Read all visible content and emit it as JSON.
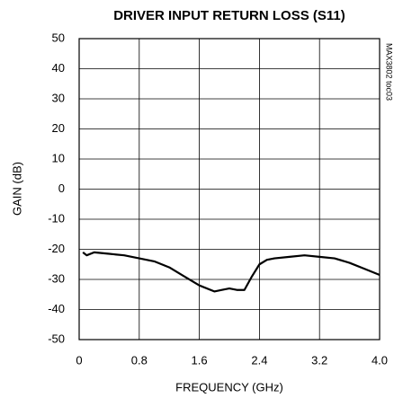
{
  "chart_data": {
    "type": "line",
    "title": "DRIVER INPUT RETURN LOSS (S11)",
    "xlabel": "FREQUENCY (GHz)",
    "ylabel": "GAIN (dB)",
    "annotation": "MAX3802 toc03",
    "xlim": [
      0,
      4
    ],
    "xticks": [
      0,
      0.8,
      1.6,
      2.4,
      3.2,
      {
        "value": 4,
        "label": "4.0"
      }
    ],
    "ylim": [
      -50,
      50
    ],
    "yticks": [
      -50,
      -40,
      -30,
      -20,
      -10,
      0,
      10,
      20,
      30,
      40,
      50
    ],
    "grid": true,
    "series": [
      {
        "name": "S11",
        "color": "#000000",
        "x": [
          0.05,
          0.1,
          0.2,
          0.4,
          0.6,
          0.8,
          1.0,
          1.2,
          1.4,
          1.6,
          1.8,
          1.9,
          2.0,
          2.1,
          2.2,
          2.3,
          2.4,
          2.5,
          2.6,
          2.8,
          3.0,
          3.2,
          3.4,
          3.6,
          3.8,
          3.9,
          4.0
        ],
        "values": [
          -21,
          -22,
          -21,
          -21.5,
          -22,
          -23,
          -24,
          -26,
          -29,
          -32,
          -34,
          -33.5,
          -33,
          -33.5,
          -33.5,
          -29,
          -25,
          -23.5,
          -23,
          -22.5,
          -22,
          -22.5,
          -23,
          -24.5,
          -26.5,
          -27.5,
          -28.5
        ]
      }
    ]
  }
}
